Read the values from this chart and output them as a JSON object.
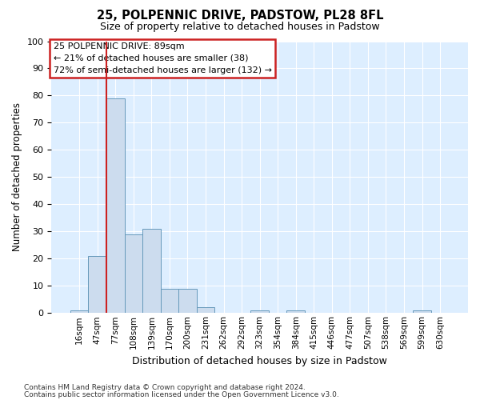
{
  "title1": "25, POLPENNIC DRIVE, PADSTOW, PL28 8FL",
  "title2": "Size of property relative to detached houses in Padstow",
  "xlabel": "Distribution of detached houses by size in Padstow",
  "ylabel": "Number of detached properties",
  "bins": [
    "16sqm",
    "47sqm",
    "77sqm",
    "108sqm",
    "139sqm",
    "170sqm",
    "200sqm",
    "231sqm",
    "262sqm",
    "292sqm",
    "323sqm",
    "354sqm",
    "384sqm",
    "415sqm",
    "446sqm",
    "477sqm",
    "507sqm",
    "538sqm",
    "569sqm",
    "599sqm",
    "630sqm"
  ],
  "values": [
    1,
    21,
    79,
    29,
    31,
    9,
    9,
    2,
    0,
    0,
    1,
    0,
    1,
    0,
    0,
    0,
    0,
    0,
    0,
    1,
    0
  ],
  "bar_color": "#ccdcee",
  "bar_edge_color": "#6699bb",
  "vline_x_index": 2,
  "vline_color": "#cc2222",
  "annotation_text": "25 POLPENNIC DRIVE: 89sqm\n← 21% of detached houses are smaller (38)\n72% of semi-detached houses are larger (132) →",
  "annotation_box_color": "#ffffff",
  "annotation_box_edge": "#cc2222",
  "ylim": [
    0,
    100
  ],
  "yticks": [
    0,
    10,
    20,
    30,
    40,
    50,
    60,
    70,
    80,
    90,
    100
  ],
  "footer1": "Contains HM Land Registry data © Crown copyright and database right 2024.",
  "footer2": "Contains public sector information licensed under the Open Government Licence v3.0.",
  "fig_bg_color": "#ffffff",
  "plot_bg_color": "#ddeeff"
}
